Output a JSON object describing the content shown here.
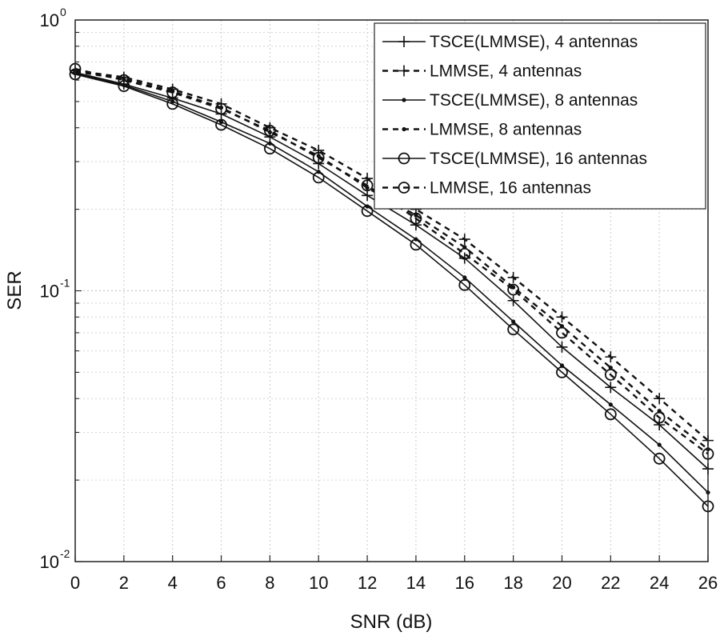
{
  "chart_data": {
    "type": "line",
    "title": "",
    "xlabel": "SNR (dB)",
    "ylabel": "SER",
    "yscale": "log",
    "xlim": [
      0,
      26
    ],
    "ylim": [
      0.01,
      1
    ],
    "grid": true,
    "legend_position": "top-right",
    "x": [
      0,
      2,
      4,
      6,
      8,
      10,
      12,
      14,
      16,
      18,
      20,
      22,
      24,
      26
    ],
    "x_ticks": [
      "0",
      "2",
      "4",
      "6",
      "8",
      "10",
      "12",
      "14",
      "16",
      "18",
      "20",
      "22",
      "24",
      "26"
    ],
    "y_ticks": [
      {
        "value": 1,
        "base": "10",
        "exp": "0"
      },
      {
        "value": 0.1,
        "base": "10",
        "exp": "-1"
      },
      {
        "value": 0.01,
        "base": "10",
        "exp": "-2"
      }
    ],
    "series": [
      {
        "name": "TSCE(LMMSE), 4 antennas",
        "line": "solid",
        "marker": "plus",
        "values": [
          0.64,
          0.58,
          0.515,
          0.45,
          0.37,
          0.295,
          0.225,
          0.175,
          0.132,
          0.092,
          0.062,
          0.044,
          0.032,
          0.022
        ]
      },
      {
        "name": "LMMSE, 4 antennas",
        "line": "dashed",
        "marker": "plus",
        "values": [
          0.65,
          0.615,
          0.555,
          0.49,
          0.4,
          0.33,
          0.26,
          0.2,
          0.155,
          0.112,
          0.08,
          0.057,
          0.04,
          0.028
        ]
      },
      {
        "name": "TSCE(LMMSE), 8 antennas",
        "line": "solid",
        "marker": "dot",
        "values": [
          0.635,
          0.575,
          0.5,
          0.42,
          0.35,
          0.275,
          0.205,
          0.155,
          0.112,
          0.077,
          0.053,
          0.038,
          0.027,
          0.018
        ]
      },
      {
        "name": "LMMSE, 8 antennas",
        "line": "dashed",
        "marker": "dot",
        "values": [
          0.645,
          0.605,
          0.545,
          0.475,
          0.385,
          0.315,
          0.24,
          0.19,
          0.145,
          0.103,
          0.074,
          0.052,
          0.036,
          0.026
        ]
      },
      {
        "name": "TSCE(LMMSE), 16 antennas",
        "line": "solid",
        "marker": "circle",
        "values": [
          0.63,
          0.57,
          0.49,
          0.41,
          0.335,
          0.262,
          0.197,
          0.148,
          0.105,
          0.072,
          0.05,
          0.035,
          0.024,
          0.016
        ]
      },
      {
        "name": "LMMSE, 16 antennas",
        "line": "dashed",
        "marker": "circle",
        "values": [
          0.66,
          0.6,
          0.54,
          0.47,
          0.39,
          0.31,
          0.245,
          0.185,
          0.137,
          0.101,
          0.07,
          0.049,
          0.034,
          0.025
        ]
      }
    ]
  }
}
